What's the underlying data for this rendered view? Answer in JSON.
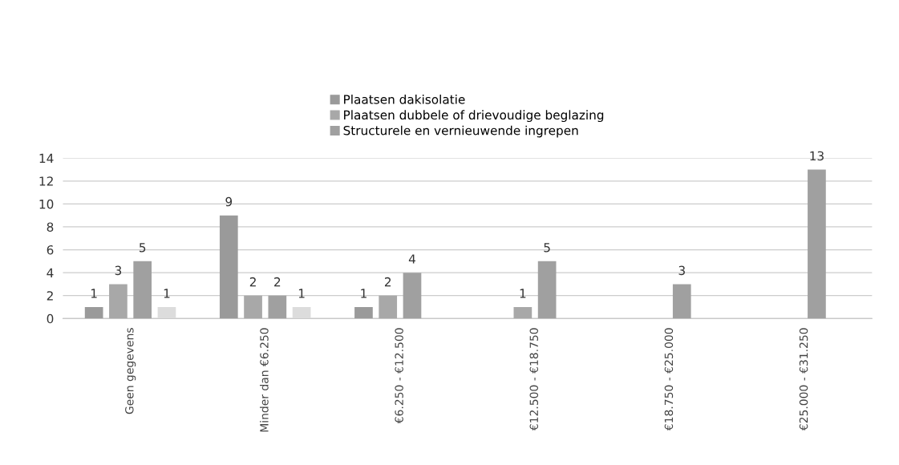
{
  "chart_data": {
    "type": "bar",
    "categories": [
      "Geen gegevens",
      "Minder dan €6.250",
      "€6.250 - €12.500",
      "€12.500 - €18.750",
      "€18.750 - €25.000",
      "€25.000 - €31.250"
    ],
    "series": [
      {
        "name": "Plaatsen dakisolatie",
        "color": "#9a9a9a",
        "values": [
          1,
          9,
          1,
          null,
          null,
          null
        ]
      },
      {
        "name": "Plaatsen dubbele of drievoudige beglazing",
        "color": "#a8a8a8",
        "values": [
          3,
          2,
          2,
          1,
          null,
          null
        ]
      },
      {
        "name": "Structurele en vernieuwende ingrepen",
        "color": "#a0a0a0",
        "values": [
          5,
          2,
          4,
          5,
          3,
          13
        ]
      },
      {
        "color": "#dcdcdc",
        "values": [
          1,
          1,
          null,
          null,
          null,
          null
        ]
      }
    ],
    "ylim": [
      0,
      14
    ],
    "yticks": [
      0,
      2,
      4,
      6,
      8,
      10,
      12,
      14
    ],
    "grid": "y",
    "legend": "top",
    "data_labels": true
  }
}
